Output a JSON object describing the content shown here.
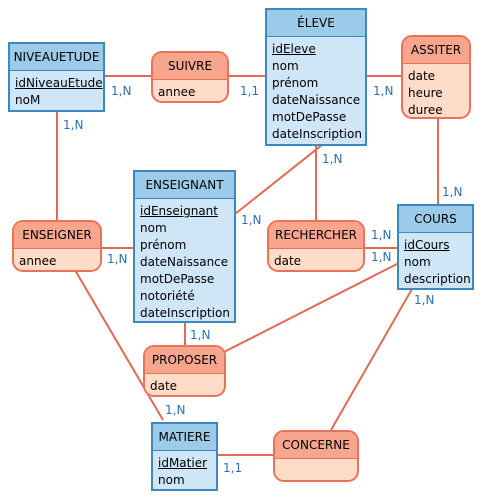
{
  "entities": {
    "niveauetude": {
      "name": "NIVEAUETUDE",
      "attributes": [
        "idNiveauEtude",
        "noM"
      ]
    },
    "eleve": {
      "name": "ÉLEVE",
      "attributes": [
        "idEleve",
        "nom",
        "prénom",
        "dateNaissance",
        "motDePasse",
        "dateInscription"
      ]
    },
    "enseignant": {
      "name": "ENSEIGNANT",
      "attributes": [
        "idEnseignant",
        "nom",
        "prénom",
        "dateNaissance",
        "motDePasse",
        "notoriété",
        "dateInscription"
      ]
    },
    "cours": {
      "name": "COURS",
      "attributes": [
        "idCours",
        "nom",
        "description"
      ]
    },
    "matiere": {
      "name": "MATIERE",
      "attributes": [
        "idMatier",
        "nom"
      ]
    }
  },
  "associations": {
    "suivre": {
      "name": "SUIVRE",
      "attributes": [
        "annee"
      ]
    },
    "assister": {
      "name": "ASSITER",
      "attributes": [
        "date",
        "heure",
        "duree"
      ]
    },
    "enseigner": {
      "name": "ENSEIGNER",
      "attributes": [
        "annee"
      ]
    },
    "rechercher": {
      "name": "RECHERCHER",
      "attributes": [
        "date"
      ]
    },
    "proposer": {
      "name": "PROPOSER",
      "attributes": [
        "date"
      ]
    },
    "concerne": {
      "name": "CONCERNE",
      "attributes": []
    }
  },
  "cardinalities": {
    "niveau_suivre": "1,N",
    "eleve_suivre": "1,1",
    "eleve_assister": "1,N",
    "niveau_enseigner": "1,N",
    "eleve_rechercher": "1,N",
    "cours_assister": "1,N",
    "enseignant_eleve": "1,N",
    "enseignant_enseigner": "1,N",
    "cours_rechercher_1": "1,N",
    "cours_rechercher_2": "1,N",
    "cours_concerne": "1,N",
    "enseignant_proposer": "1,N",
    "matiere_enseigner": "1,N",
    "matiere_concerne": "1,1"
  },
  "colors": {
    "entity_border": "#3f88be",
    "entity_header": "#9ccbe9",
    "entity_body": "#cfe6f6",
    "assoc_border": "#e9735a",
    "assoc_header": "#f7a68d",
    "assoc_body": "#ffdcc7",
    "link": "#e06a55",
    "cardinality": "#2e6fb4"
  }
}
